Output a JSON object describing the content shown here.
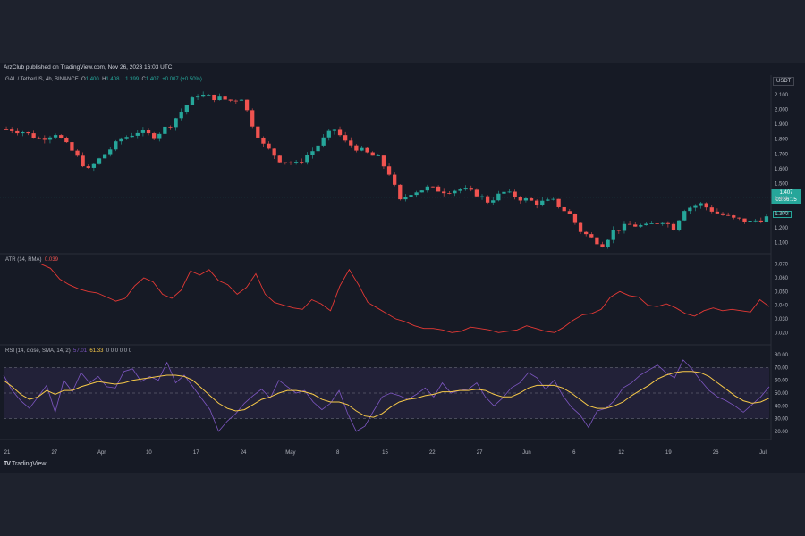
{
  "header": {
    "published": "ArzClub published on TradingView.com, Nov 26, 2023 16:03 UTC"
  },
  "symbol_legend": {
    "title": "GAL / TetherUS, 4h, BINANCE",
    "o_label": "O",
    "o_val": "1.400",
    "h_label": "H",
    "h_val": "1.408",
    "l_label": "L",
    "l_val": "1.399",
    "c_label": "C",
    "c_val": "1.407",
    "change": "+0.007 (+0.50%)"
  },
  "atr_legend": {
    "title": "ATR (14, RMA)",
    "value": "0.039"
  },
  "rsi_legend": {
    "title": "RSI (14, close, SMA, 14, 2)",
    "rsi": "57.01",
    "ma": "61.33",
    "rest": "0 0 0 0 0 0"
  },
  "currency": "USDT",
  "price_badge": {
    "price": "1.407",
    "countdown": "03:56:15"
  },
  "ma_badge": "1.272",
  "footer": {
    "logo_mark": "TV",
    "logo_text": "TradingView"
  },
  "colors": {
    "up": "#26a69a",
    "down": "#ef5350",
    "atr": "#e53935",
    "rsi": "#7e57c2",
    "rsi_ma": "#f7c948",
    "band": "#7e57c2"
  },
  "chart_data": [
    {
      "type": "candlestick",
      "title": "GAL / TetherUS, 4h, BINANCE",
      "ylim": [
        1.05,
        2.16
      ],
      "yticks": [
        "2.100",
        "2.000",
        "1.900",
        "1.800",
        "1.700",
        "1.600",
        "1.500",
        "1.400",
        "1.300",
        "1.200",
        "1.100"
      ],
      "x_ticks": [
        "21",
        "27",
        "Apr",
        "10",
        "17",
        "24",
        "May",
        "8",
        "15",
        "22",
        "27",
        "Jun",
        "6",
        "12",
        "19",
        "26",
        "Jul"
      ],
      "close_path": [
        [
          0,
          1.87
        ],
        [
          3,
          1.85
        ],
        [
          6,
          1.8
        ],
        [
          9,
          1.84
        ],
        [
          12,
          1.72
        ],
        [
          15,
          1.59
        ],
        [
          18,
          1.7
        ],
        [
          21,
          1.8
        ],
        [
          24,
          1.85
        ],
        [
          27,
          1.82
        ],
        [
          30,
          1.9
        ],
        [
          33,
          2.03
        ],
        [
          35,
          2.1
        ],
        [
          38,
          2.08
        ],
        [
          41,
          2.06
        ],
        [
          43,
          2.08
        ],
        [
          45,
          1.9
        ],
        [
          47,
          1.76
        ],
        [
          50,
          1.66
        ],
        [
          53,
          1.63
        ],
        [
          56,
          1.72
        ],
        [
          58,
          1.8
        ],
        [
          60,
          1.87
        ],
        [
          62,
          1.78
        ],
        [
          65,
          1.72
        ],
        [
          68,
          1.67
        ],
        [
          70,
          1.57
        ],
        [
          72,
          1.38
        ],
        [
          74,
          1.44
        ],
        [
          77,
          1.47
        ],
        [
          80,
          1.45
        ],
        [
          83,
          1.46
        ],
        [
          86,
          1.43
        ],
        [
          88,
          1.38
        ],
        [
          91,
          1.44
        ],
        [
          94,
          1.4
        ],
        [
          97,
          1.37
        ],
        [
          100,
          1.38
        ],
        [
          103,
          1.29
        ],
        [
          105,
          1.18
        ],
        [
          107,
          1.13
        ],
        [
          109,
          1.09
        ],
        [
          111,
          1.18
        ],
        [
          114,
          1.22
        ],
        [
          117,
          1.21
        ],
        [
          120,
          1.25
        ],
        [
          122,
          1.2
        ],
        [
          124,
          1.33
        ],
        [
          127,
          1.36
        ],
        [
          130,
          1.3
        ],
        [
          133,
          1.26
        ],
        [
          136,
          1.24
        ],
        [
          139,
          1.27
        ]
      ]
    },
    {
      "type": "line",
      "title": "ATR (14, RMA)",
      "ylim": [
        0.015,
        0.075
      ],
      "yticks": [
        "0.070",
        "0.060",
        "0.050",
        "0.040",
        "0.030",
        "0.020"
      ],
      "values": [
        0.07,
        0.067,
        0.059,
        0.055,
        0.052,
        0.05,
        0.049,
        0.046,
        0.043,
        0.045,
        0.054,
        0.06,
        0.057,
        0.048,
        0.045,
        0.051,
        0.065,
        0.062,
        0.066,
        0.058,
        0.055,
        0.048,
        0.053,
        0.063,
        0.048,
        0.042,
        0.04,
        0.038,
        0.037,
        0.044,
        0.041,
        0.036,
        0.054,
        0.066,
        0.055,
        0.042,
        0.038,
        0.034,
        0.03,
        0.028,
        0.025,
        0.023,
        0.023,
        0.022,
        0.02,
        0.021,
        0.024,
        0.023,
        0.022,
        0.02,
        0.021,
        0.022,
        0.025,
        0.023,
        0.021,
        0.02,
        0.024,
        0.029,
        0.033,
        0.034,
        0.037,
        0.046,
        0.05,
        0.047,
        0.046,
        0.04,
        0.039,
        0.041,
        0.038,
        0.034,
        0.032,
        0.036,
        0.038,
        0.036,
        0.037,
        0.036,
        0.035,
        0.044,
        0.039
      ]
    },
    {
      "type": "line",
      "title": "RSI (14, close, SMA, 14, 2)",
      "ylim": [
        15,
        85
      ],
      "yticks": [
        "80.00",
        "70.00",
        "60.00",
        "50.00",
        "40.00",
        "30.00",
        "20.00"
      ],
      "bands": [
        70,
        50,
        30
      ],
      "series": [
        {
          "name": "RSI",
          "values": [
            64,
            52,
            44,
            38,
            47,
            56,
            35,
            60,
            51,
            66,
            58,
            63,
            55,
            54,
            67,
            69,
            59,
            63,
            60,
            74,
            58,
            64,
            55,
            46,
            37,
            20,
            28,
            34,
            42,
            48,
            53,
            46,
            60,
            55,
            50,
            52,
            43,
            37,
            42,
            52,
            34,
            20,
            24,
            36,
            47,
            50,
            48,
            45,
            49,
            54,
            47,
            58,
            50,
            52,
            53,
            58,
            47,
            40,
            46,
            54,
            58,
            66,
            62,
            53,
            60,
            48,
            39,
            33,
            23,
            36,
            38,
            44,
            54,
            58,
            64,
            68,
            72,
            66,
            62,
            76,
            69,
            60,
            52,
            47,
            44,
            40,
            35,
            41,
            47,
            55
          ]
        },
        {
          "name": "MA",
          "values": [
            60,
            55,
            49,
            45,
            47,
            52,
            49,
            52,
            52,
            55,
            57,
            59,
            58,
            57,
            58,
            60,
            61,
            62,
            63,
            64,
            64,
            63,
            60,
            54,
            48,
            42,
            38,
            36,
            37,
            41,
            45,
            47,
            50,
            52,
            52,
            51,
            49,
            45,
            43,
            43,
            41,
            36,
            32,
            31,
            34,
            39,
            43,
            45,
            46,
            48,
            49,
            51,
            51,
            52,
            52,
            53,
            52,
            49,
            47,
            47,
            50,
            54,
            56,
            56,
            56,
            54,
            50,
            45,
            40,
            38,
            38,
            40,
            43,
            48,
            52,
            56,
            61,
            64,
            66,
            67,
            67,
            66,
            63,
            58,
            53,
            48,
            44,
            42,
            43,
            46
          ]
        }
      ]
    }
  ]
}
